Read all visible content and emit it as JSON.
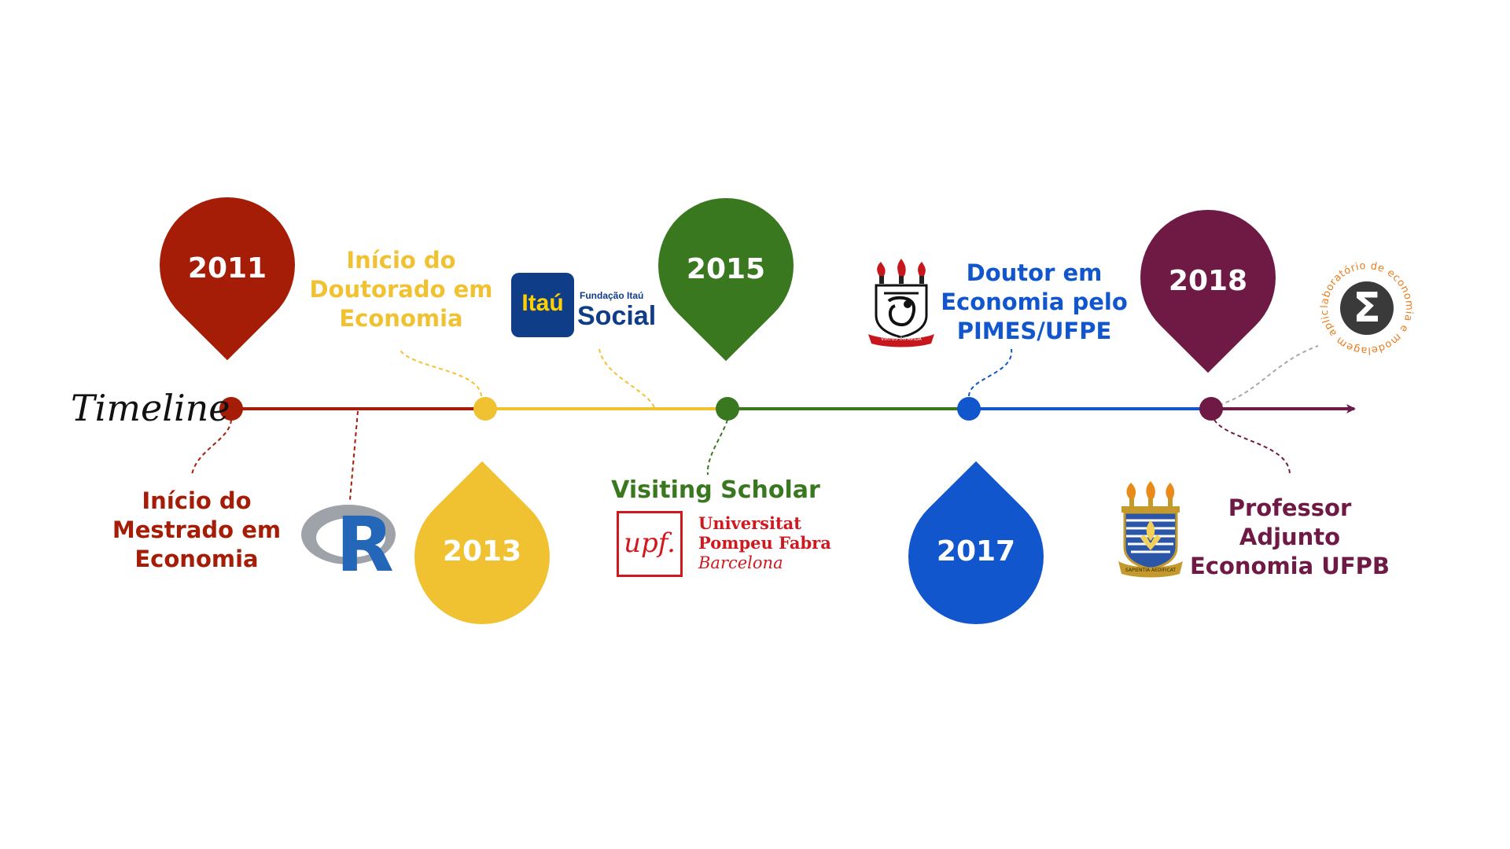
{
  "timeline_label": "Timeline",
  "arrow_color": "#6b1a4a",
  "milestones": [
    {
      "year": "2011",
      "color": "#a51d07",
      "label_lines": [
        "Início do",
        "Mestrado em",
        "Economia"
      ]
    },
    {
      "year": "2013",
      "color": "#f0c232",
      "label_lines": [
        "Início do",
        "Doutorado em",
        "Economia"
      ]
    },
    {
      "year": "2015",
      "color": "#3a7820",
      "label_lines": [
        "Visiting Scholar"
      ]
    },
    {
      "year": "2017",
      "color": "#1156cc",
      "label_lines": [
        "Doutor em",
        "Economia pelo",
        "PIMES/UFPE"
      ]
    },
    {
      "year": "2018",
      "color": "#6e1a45",
      "label_lines": [
        "Professor",
        "Adjunto",
        "Economia UFPB"
      ]
    }
  ],
  "logos": {
    "r": {
      "letter": "R"
    },
    "itau": {
      "top": "Fundação Itaú",
      "brand": "Itaú",
      "word": "Social"
    },
    "upf": {
      "mark": "upf.",
      "line1": "Universitat",
      "line2": "Pompeu Fabra",
      "line3": "Barcelona"
    },
    "ufpe": {
      "motto": "VIRTUS IMPAVIDA"
    },
    "ufpb": {
      "motto": "SAPIENTIA AEDIFICAT"
    },
    "lab": {
      "ring_text": "laboratório de economia e modelagem aplicada",
      "glyph": "Σ"
    }
  }
}
